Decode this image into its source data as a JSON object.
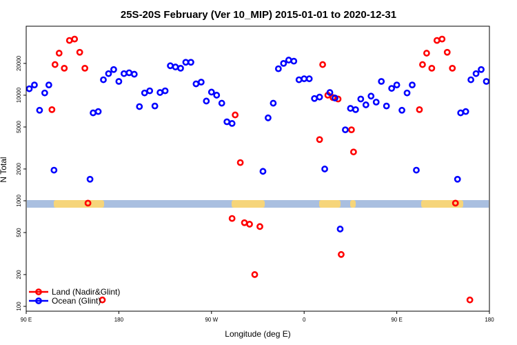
{
  "chart_data": {
    "type": "scatter",
    "title": "25S-20S February (Ver 10_MIP)   2015-01-01 to 2020-12-31",
    "xlabel": "Longitude (deg E)",
    "ylabel": "N Total",
    "x_ticks": [
      {
        "value": 90,
        "label": "90 E"
      },
      {
        "value": 180,
        "label": "180"
      },
      {
        "value": 270,
        "label": "90 W"
      },
      {
        "value": 360,
        "label": "0"
      },
      {
        "value": 450,
        "label": "90 E"
      },
      {
        "value": 540,
        "label": "180"
      }
    ],
    "y_ticks": [
      100,
      200,
      500,
      1000,
      2000,
      5000,
      10000,
      20000
    ],
    "xlim": [
      90,
      540
    ],
    "ylim": [
      90,
      45000
    ],
    "y_scale": "log",
    "legend_position": "bottom-left",
    "series": [
      {
        "name": "Land (Nadir&Glint)",
        "color": "#ff0000",
        "points": [
          [
            115,
            7300
          ],
          [
            118,
            19500
          ],
          [
            122,
            25000
          ],
          [
            127,
            18000
          ],
          [
            132,
            33000
          ],
          [
            137,
            34000
          ],
          [
            142,
            25500
          ],
          [
            147,
            18000
          ],
          [
            150,
            950
          ],
          [
            164,
            115
          ],
          [
            290,
            680
          ],
          [
            293,
            6500
          ],
          [
            298,
            2300
          ],
          [
            302,
            620
          ],
          [
            307,
            600
          ],
          [
            312,
            200
          ],
          [
            317,
            570
          ],
          [
            375,
            3800
          ],
          [
            378,
            19500
          ],
          [
            383,
            10000
          ],
          [
            388,
            9500
          ],
          [
            393,
            9200
          ],
          [
            396,
            310
          ],
          [
            406,
            4700
          ],
          [
            408,
            2900
          ],
          [
            472,
            7300
          ],
          [
            475,
            19500
          ],
          [
            479,
            25000
          ],
          [
            484,
            18000
          ],
          [
            489,
            33000
          ],
          [
            494,
            34000
          ],
          [
            499,
            25500
          ],
          [
            504,
            18000
          ],
          [
            507,
            950
          ],
          [
            521,
            115
          ]
        ]
      },
      {
        "name": "Ocean (Glint)",
        "color": "#0000ff",
        "points": [
          [
            93,
            11500
          ],
          [
            98,
            12500
          ],
          [
            103,
            7200
          ],
          [
            108,
            10500
          ],
          [
            112,
            12500
          ],
          [
            117,
            1950
          ],
          [
            152,
            1600
          ],
          [
            155,
            6800
          ],
          [
            160,
            7000
          ],
          [
            165,
            14000
          ],
          [
            170,
            16000
          ],
          [
            175,
            17500
          ],
          [
            180,
            13500
          ],
          [
            185,
            16000
          ],
          [
            190,
            16300
          ],
          [
            195,
            15800
          ],
          [
            200,
            7800
          ],
          [
            205,
            10500
          ],
          [
            210,
            11000
          ],
          [
            215,
            7900
          ],
          [
            220,
            10600
          ],
          [
            225,
            11000
          ],
          [
            230,
            19000
          ],
          [
            235,
            18500
          ],
          [
            240,
            18000
          ],
          [
            245,
            20500
          ],
          [
            250,
            20500
          ],
          [
            255,
            12800
          ],
          [
            260,
            13300
          ],
          [
            265,
            8800
          ],
          [
            270,
            10700
          ],
          [
            275,
            10000
          ],
          [
            280,
            8400
          ],
          [
            285,
            5600
          ],
          [
            290,
            5400
          ],
          [
            320,
            1900
          ],
          [
            325,
            6100
          ],
          [
            330,
            8400
          ],
          [
            335,
            17800
          ],
          [
            340,
            20000
          ],
          [
            345,
            21500
          ],
          [
            350,
            21000
          ],
          [
            355,
            14000
          ],
          [
            360,
            14300
          ],
          [
            365,
            14300
          ],
          [
            370,
            9300
          ],
          [
            375,
            9600
          ],
          [
            380,
            2000
          ],
          [
            385,
            10600
          ],
          [
            390,
            9400
          ],
          [
            395,
            540
          ],
          [
            400,
            4700
          ],
          [
            405,
            7500
          ],
          [
            410,
            7300
          ],
          [
            415,
            9200
          ],
          [
            420,
            8100
          ],
          [
            425,
            9800
          ],
          [
            430,
            8600
          ],
          [
            435,
            13500
          ],
          [
            440,
            7900
          ],
          [
            445,
            11600
          ],
          [
            450,
            12500
          ],
          [
            455,
            7200
          ],
          [
            460,
            10500
          ],
          [
            465,
            12500
          ],
          [
            469,
            1950
          ],
          [
            509,
            1600
          ],
          [
            512,
            6800
          ],
          [
            517,
            7000
          ],
          [
            522,
            14000
          ],
          [
            527,
            16000
          ],
          [
            532,
            17500
          ],
          [
            537,
            13500
          ]
        ]
      }
    ]
  }
}
